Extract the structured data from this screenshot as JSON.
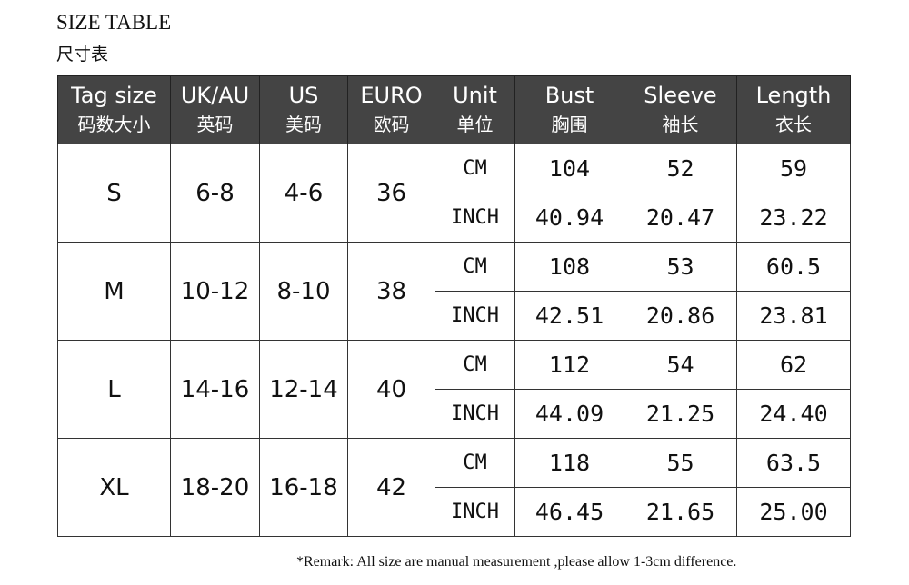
{
  "title": "SIZE TABLE",
  "subtitle": "尺寸表",
  "headers": [
    {
      "en": "Tag size",
      "zh": "码数大小"
    },
    {
      "en": "UK/AU",
      "zh": "英码"
    },
    {
      "en": "US",
      "zh": "美码"
    },
    {
      "en": "EURO",
      "zh": "欧码"
    },
    {
      "en": "Unit",
      "zh": "单位"
    },
    {
      "en": "Bust",
      "zh": "胸围"
    },
    {
      "en": "Sleeve",
      "zh": "袖长"
    },
    {
      "en": "Length",
      "zh": "衣长"
    }
  ],
  "rows": [
    {
      "size": "S",
      "uk": "6-8",
      "us": "4-6",
      "euro": "36",
      "cm": {
        "unit": "CM",
        "bust": "104",
        "sleeve": "52",
        "length": "59"
      },
      "inch": {
        "unit": "INCH",
        "bust": "40.94",
        "sleeve": "20.47",
        "length": "23.22"
      }
    },
    {
      "size": "M",
      "uk": "10-12",
      "us": "8-10",
      "euro": "38",
      "cm": {
        "unit": "CM",
        "bust": "108",
        "sleeve": "53",
        "length": "60.5"
      },
      "inch": {
        "unit": "INCH",
        "bust": "42.51",
        "sleeve": "20.86",
        "length": "23.81"
      }
    },
    {
      "size": "L",
      "uk": "14-16",
      "us": "12-14",
      "euro": "40",
      "cm": {
        "unit": "CM",
        "bust": "112",
        "sleeve": "54",
        "length": "62"
      },
      "inch": {
        "unit": "INCH",
        "bust": "44.09",
        "sleeve": "21.25",
        "length": "24.40"
      }
    },
    {
      "size": "XL",
      "uk": "18-20",
      "us": "16-18",
      "euro": "42",
      "cm": {
        "unit": "CM",
        "bust": "118",
        "sleeve": "55",
        "length": "63.5"
      },
      "inch": {
        "unit": "INCH",
        "bust": "46.45",
        "sleeve": "21.65",
        "length": "25.00"
      }
    }
  ],
  "remark": "*Remark: All size are manual measurement ,please allow 1-3cm difference."
}
